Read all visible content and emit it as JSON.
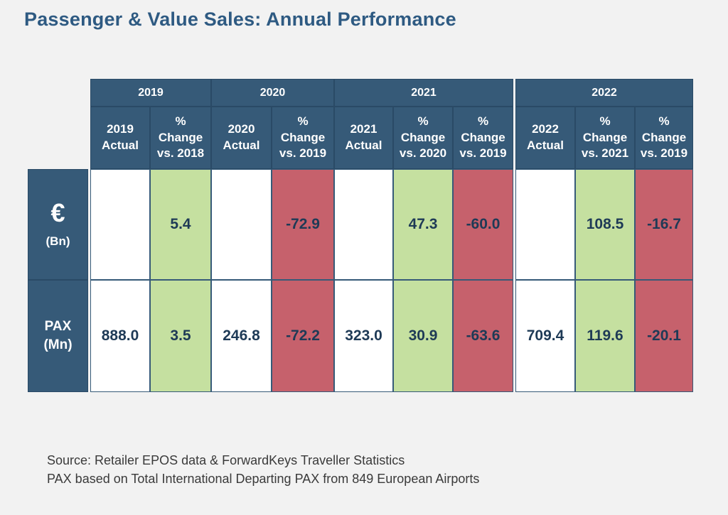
{
  "title": "Passenger & Value Sales: Annual Performance",
  "chart_data": {
    "type": "table",
    "title": "Passenger & Value Sales: Annual Performance",
    "year_groups": [
      "2019",
      "2020",
      "2021",
      "2022"
    ],
    "columns": [
      {
        "year": "2019",
        "line1": "2019",
        "line2": "Actual",
        "line3": ""
      },
      {
        "year": "2019",
        "line1": "%",
        "line2": "Change",
        "line3": "vs. 2018"
      },
      {
        "year": "2020",
        "line1": "2020",
        "line2": "Actual",
        "line3": ""
      },
      {
        "year": "2020",
        "line1": "%",
        "line2": "Change",
        "line3": "vs. 2019"
      },
      {
        "year": "2021",
        "line1": "2021",
        "line2": "Actual",
        "line3": ""
      },
      {
        "year": "2021",
        "line1": "%",
        "line2": "Change",
        "line3": "vs. 2020"
      },
      {
        "year": "2021",
        "line1": "%",
        "line2": "Change",
        "line3": "vs. 2019"
      },
      {
        "year": "2022",
        "line1": "2022",
        "line2": "Actual",
        "line3": ""
      },
      {
        "year": "2022",
        "line1": "%",
        "line2": "Change",
        "line3": "vs. 2021"
      },
      {
        "year": "2022",
        "line1": "%",
        "line2": "Change",
        "line3": "vs. 2019"
      }
    ],
    "rows": [
      {
        "label_symbol": "€",
        "label_unit": "(Bn)",
        "values": [
          "",
          "5.4",
          "",
          "-72.9",
          "",
          "47.3",
          "-60.0",
          "",
          "108.5",
          "-16.7"
        ]
      },
      {
        "label_symbol": "PAX",
        "label_unit": "(Mn)",
        "values": [
          "888.0",
          "3.5",
          "246.8",
          "-72.2",
          "323.0",
          "30.9",
          "-63.6",
          "709.4",
          "119.6",
          "-20.1"
        ]
      }
    ],
    "cell_colors": [
      "white",
      "green",
      "white",
      "red",
      "white",
      "green",
      "red",
      "white",
      "green",
      "red"
    ],
    "colors": {
      "header": "#365a78",
      "positive": "#c5e0a0",
      "negative": "#c6616c",
      "neutral": "#ffffff"
    }
  },
  "footnotes": {
    "source": "Source: Retailer EPOS data & ForwardKeys Traveller Statistics",
    "pax_note": "PAX based on Total International Departing PAX from 849 European Airports"
  }
}
